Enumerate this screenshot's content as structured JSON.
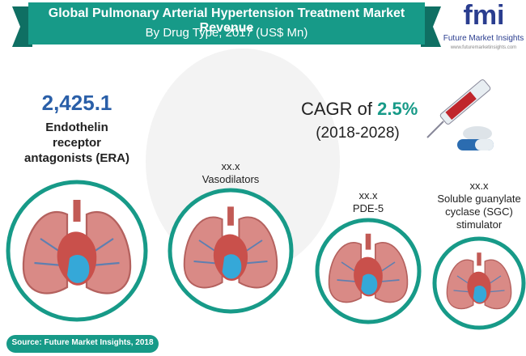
{
  "header": {
    "title": "Global Pulmonary Arterial Hypertension Treatment Market Revenue",
    "subtitle": "By Drug Type, 2017 (US$ Mn)"
  },
  "logo": {
    "mark": "fmi",
    "name": "Future Market Insights",
    "url": "www.futuremarketinsights.com"
  },
  "segments": [
    {
      "value": "2,425.1",
      "label": "Endothelin receptor antagonists (ERA)"
    },
    {
      "value": "xx.x",
      "label": "Vasodilators"
    },
    {
      "value": "xx.x",
      "label": "PDE-5"
    },
    {
      "value": "xx.x",
      "label": "Soluble guanylate cyclase (SGC) stimulator"
    }
  ],
  "cagr": {
    "prefix": "CAGR of",
    "rate": "2.5%",
    "period": "(2018-2028)"
  },
  "source": "Source: Future Market Insights, 2018"
}
